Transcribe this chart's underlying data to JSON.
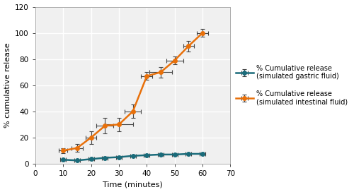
{
  "gastric_x": [
    10,
    15,
    20,
    25,
    30,
    35,
    40,
    45,
    50,
    55,
    60
  ],
  "gastric_y": [
    3,
    2.5,
    3.5,
    4.5,
    5,
    6,
    6.5,
    7,
    7,
    7.5,
    7.5
  ],
  "gastric_xerr": [
    1,
    1,
    1,
    1,
    1,
    1,
    1,
    1,
    1,
    1,
    1
  ],
  "gastric_yerr": [
    0.8,
    0.5,
    0.8,
    1,
    0.8,
    0.5,
    0.5,
    0.5,
    0.5,
    0.5,
    0.5
  ],
  "intestinal_x": [
    10,
    15,
    20,
    25,
    30,
    35,
    40,
    45,
    50,
    55,
    60
  ],
  "intestinal_y": [
    10,
    12,
    20,
    29,
    30,
    40,
    67,
    70,
    79,
    90,
    100
  ],
  "intestinal_xerr": [
    1.5,
    2,
    2,
    3,
    5,
    3,
    2,
    4,
    3,
    2,
    2
  ],
  "intestinal_yerr": [
    2,
    3,
    5,
    6,
    5,
    5,
    3,
    4,
    3,
    4,
    3
  ],
  "gastric_color": "#1a6b7a",
  "intestinal_color": "#e8700a",
  "errorbar_color": "#444444",
  "marker": "o",
  "markersize": 4,
  "linewidth": 1.8,
  "xlabel": "Time (minutes)",
  "ylabel": "% cumulative release",
  "xlim": [
    0,
    70
  ],
  "ylim": [
    0,
    120
  ],
  "xticks": [
    0,
    10,
    20,
    30,
    40,
    50,
    60,
    70
  ],
  "yticks": [
    0,
    20,
    40,
    60,
    80,
    100,
    120
  ],
  "legend_gastric": "% Cumulative release\n(simulated gastric fluid)",
  "legend_intestinal": "% Cumulative release\n(simulated intestinal fluid)",
  "grid": true,
  "plot_bg_color": "#f0f0f0",
  "fig_bg_color": "#ffffff",
  "label_fontsize": 8,
  "tick_fontsize": 7.5,
  "legend_fontsize": 7
}
